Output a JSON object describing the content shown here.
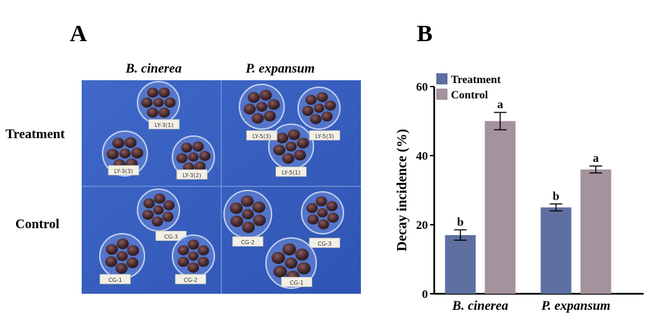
{
  "panel_a": {
    "letter": "A",
    "col_labels": [
      "B. cinerea",
      "P. expansum"
    ],
    "row_labels": [
      "Treatment",
      "Control"
    ],
    "photo_tags": {
      "treatment_bc": [
        "LY-3(3)",
        "LY-3(1)",
        "LY-3(2)"
      ],
      "treatment_pe": [
        "LY-5(3)",
        "LY-5(3)",
        "LY-5(1)"
      ],
      "control_bc": [
        "CG-3",
        "CG-1",
        "CG-2"
      ],
      "control_pe": [
        "CG-2",
        "CG-3",
        "CG-1"
      ]
    }
  },
  "panel_b": {
    "letter": "B"
  },
  "chart_data": {
    "type": "bar",
    "categories": [
      "B. cinerea",
      "P. expansum"
    ],
    "series": [
      {
        "name": "Treatment",
        "color": "#5e6fa0",
        "values": [
          17,
          25
        ],
        "errors": [
          1.5,
          1.0
        ],
        "labels": [
          "b",
          "b"
        ]
      },
      {
        "name": "Control",
        "color": "#a4929c",
        "values": [
          50,
          36
        ],
        "errors": [
          2.5,
          1.0
        ],
        "labels": [
          "a",
          "a"
        ]
      }
    ],
    "ylabel": "Decay incidence (%)",
    "xlabel": "",
    "ylim": [
      0,
      60
    ],
    "yticks": [
      0,
      20,
      40,
      60
    ],
    "legend": "top-left"
  }
}
